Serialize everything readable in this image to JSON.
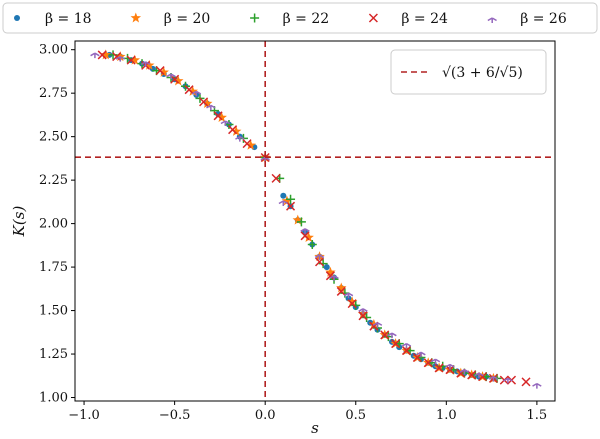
{
  "chart_data": {
    "type": "scatter",
    "xlabel": "s",
    "ylabel": "K(s)",
    "xlim": [
      -1.05,
      1.6
    ],
    "ylim": [
      0.98,
      3.05
    ],
    "xticks": [
      -1.0,
      -0.5,
      0.0,
      0.5,
      1.0,
      1.5
    ],
    "xtick_labels": [
      "−1.0",
      "−0.5",
      "0.0",
      "0.5",
      "1.0",
      "1.5"
    ],
    "yticks": [
      1.0,
      1.25,
      1.5,
      1.75,
      2.0,
      2.25,
      2.5,
      2.75,
      3.0
    ],
    "ytick_labels": [
      "1.00",
      "1.25",
      "1.50",
      "1.75",
      "2.00",
      "2.25",
      "2.50",
      "2.75",
      "3.00"
    ],
    "grid": false,
    "series_legend_placement": "top, outside plot",
    "reference_lines": {
      "label": "√(3 + 6/√5)",
      "color": "#b22222",
      "style": "dashed",
      "x": 0.0,
      "y": 2.382,
      "legend_placement": "top-right"
    },
    "series": [
      {
        "name": "β = 18",
        "marker": "dot",
        "color": "#1f77b4",
        "x": [
          -0.86,
          -0.8,
          -0.74,
          -0.68,
          -0.62,
          -0.56,
          -0.5,
          -0.44,
          -0.38,
          -0.32,
          -0.26,
          -0.2,
          -0.14,
          -0.06,
          0.0,
          0.1,
          0.14,
          0.18,
          0.22,
          0.26,
          0.3,
          0.34,
          0.38,
          0.42,
          0.46,
          0.5,
          0.54,
          0.58,
          0.62,
          0.66,
          0.7,
          0.74,
          0.78,
          0.82,
          0.86,
          0.9,
          0.94,
          0.98,
          1.02,
          1.06,
          1.1,
          1.14,
          1.18,
          1.22,
          1.26
        ],
        "y": [
          2.97,
          2.96,
          2.94,
          2.92,
          2.89,
          2.86,
          2.83,
          2.79,
          2.74,
          2.69,
          2.63,
          2.57,
          2.5,
          2.44,
          2.38,
          2.16,
          2.1,
          2.02,
          1.95,
          1.88,
          1.81,
          1.75,
          1.69,
          1.63,
          1.57,
          1.52,
          1.48,
          1.43,
          1.39,
          1.36,
          1.32,
          1.29,
          1.27,
          1.24,
          1.22,
          1.2,
          1.18,
          1.17,
          1.16,
          1.15,
          1.14,
          1.13,
          1.12,
          1.12,
          1.11
        ]
      },
      {
        "name": "β = 20",
        "marker": "star",
        "color": "#ff7f0e",
        "x": [
          -0.88,
          -0.8,
          -0.72,
          -0.64,
          -0.56,
          -0.48,
          -0.4,
          -0.32,
          -0.24,
          -0.16,
          -0.08,
          0.0,
          0.12,
          0.18,
          0.24,
          0.3,
          0.36,
          0.42,
          0.48,
          0.54,
          0.6,
          0.66,
          0.72,
          0.78,
          0.84,
          0.9,
          0.96,
          1.02,
          1.08,
          1.14,
          1.2,
          1.26
        ],
        "y": [
          2.97,
          2.96,
          2.94,
          2.91,
          2.87,
          2.82,
          2.76,
          2.69,
          2.61,
          2.53,
          2.45,
          2.38,
          2.13,
          2.02,
          1.92,
          1.81,
          1.72,
          1.63,
          1.55,
          1.48,
          1.42,
          1.36,
          1.31,
          1.27,
          1.23,
          1.2,
          1.17,
          1.16,
          1.14,
          1.13,
          1.12,
          1.11
        ]
      },
      {
        "name": "β = 22",
        "marker": "plus",
        "color": "#2ca02c",
        "x": [
          -0.84,
          -0.76,
          -0.68,
          -0.6,
          -0.52,
          -0.44,
          -0.36,
          -0.28,
          -0.2,
          -0.12,
          0.0,
          0.08,
          0.14,
          0.2,
          0.26,
          0.32,
          0.38,
          0.44,
          0.5,
          0.56,
          0.62,
          0.68,
          0.74,
          0.8,
          0.86,
          0.92,
          0.98,
          1.04,
          1.1,
          1.16,
          1.22,
          1.28
        ],
        "y": [
          2.97,
          2.95,
          2.92,
          2.88,
          2.84,
          2.79,
          2.72,
          2.65,
          2.57,
          2.49,
          2.38,
          2.26,
          2.14,
          2.01,
          1.88,
          1.77,
          1.68,
          1.6,
          1.53,
          1.46,
          1.4,
          1.35,
          1.31,
          1.27,
          1.23,
          1.2,
          1.18,
          1.16,
          1.14,
          1.13,
          1.12,
          1.11
        ]
      },
      {
        "name": "β = 24",
        "marker": "x",
        "color": "#d62728",
        "x": [
          -0.9,
          -0.82,
          -0.74,
          -0.66,
          -0.58,
          -0.5,
          -0.42,
          -0.34,
          -0.26,
          -0.18,
          -0.1,
          0.0,
          0.06,
          0.14,
          0.22,
          0.3,
          0.36,
          0.42,
          0.48,
          0.54,
          0.6,
          0.66,
          0.72,
          0.78,
          0.84,
          0.9,
          0.96,
          1.02,
          1.08,
          1.14,
          1.2,
          1.26,
          1.32,
          1.36,
          1.44
        ],
        "y": [
          2.97,
          2.96,
          2.94,
          2.91,
          2.88,
          2.83,
          2.77,
          2.7,
          2.62,
          2.54,
          2.46,
          2.38,
          2.26,
          2.1,
          1.93,
          1.78,
          1.7,
          1.61,
          1.54,
          1.47,
          1.41,
          1.36,
          1.31,
          1.27,
          1.23,
          1.2,
          1.17,
          1.16,
          1.14,
          1.13,
          1.12,
          1.11,
          1.1,
          1.1,
          1.09
        ]
      },
      {
        "name": "β = 26",
        "marker": "tri_down",
        "color": "#9467bd",
        "x": [
          -0.94,
          -0.8,
          -0.66,
          -0.52,
          -0.38,
          -0.3,
          -0.22,
          -0.14,
          0.0,
          0.1,
          0.22,
          0.3,
          0.38,
          0.46,
          0.54,
          0.62,
          0.7,
          0.78,
          0.86,
          0.94,
          1.02,
          1.1,
          1.18,
          1.26,
          1.34,
          1.5
        ],
        "y": [
          2.98,
          2.96,
          2.93,
          2.86,
          2.76,
          2.68,
          2.59,
          2.5,
          2.38,
          2.13,
          1.97,
          1.82,
          1.7,
          1.6,
          1.51,
          1.43,
          1.37,
          1.31,
          1.26,
          1.22,
          1.19,
          1.16,
          1.14,
          1.12,
          1.11,
          1.08
        ]
      }
    ]
  }
}
